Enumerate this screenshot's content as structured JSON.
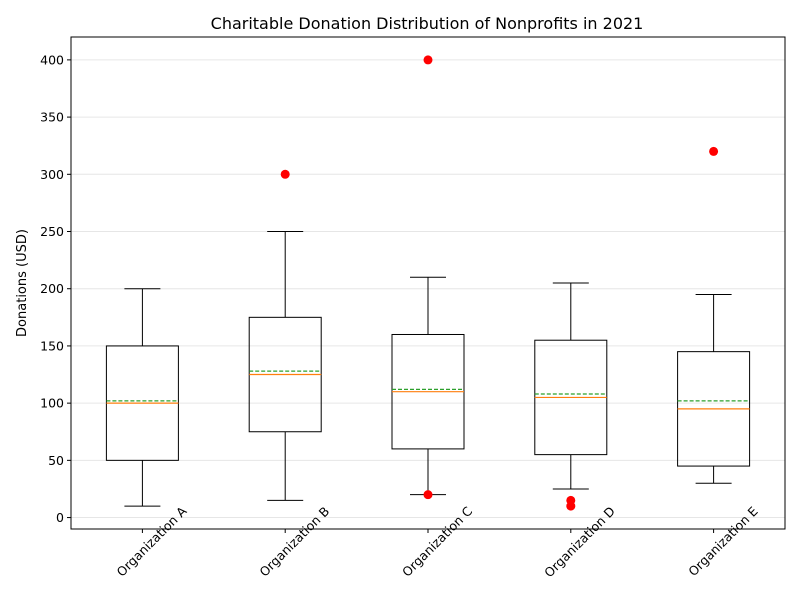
{
  "chart_data": {
    "type": "box",
    "title": "Charitable Donation Distribution of Nonprofits in 2021",
    "xlabel": "",
    "ylabel": "Donations (USD)",
    "ylim": [
      -10,
      420
    ],
    "yticks": [
      0,
      50,
      100,
      150,
      200,
      250,
      300,
      350,
      400
    ],
    "grid": "y",
    "categories": [
      "Organization A",
      "Organization B",
      "Organization C",
      "Organization D",
      "Organization E"
    ],
    "boxes": [
      {
        "category": "Organization A",
        "whisker_low": 10,
        "q1": 50,
        "median": 100,
        "mean": 102,
        "q3": 150,
        "whisker_high": 200,
        "outliers": []
      },
      {
        "category": "Organization B",
        "whisker_low": 15,
        "q1": 75,
        "median": 125,
        "mean": 128,
        "q3": 175,
        "whisker_high": 250,
        "outliers": [
          300
        ]
      },
      {
        "category": "Organization C",
        "whisker_low": 20,
        "q1": 60,
        "median": 110,
        "mean": 112,
        "q3": 160,
        "whisker_high": 210,
        "outliers": [
          20,
          400
        ]
      },
      {
        "category": "Organization D",
        "whisker_low": 25,
        "q1": 55,
        "median": 105,
        "mean": 108,
        "q3": 155,
        "whisker_high": 205,
        "outliers": [
          10,
          15
        ]
      },
      {
        "category": "Organization E",
        "whisker_low": 30,
        "q1": 45,
        "median": 95,
        "mean": 102,
        "q3": 145,
        "whisker_high": 195,
        "outliers": [
          320
        ]
      }
    ],
    "colors": {
      "box": "#000000",
      "median": "#ff7f0e",
      "mean": "#2ca02c",
      "outlier": "#ff0000",
      "grid": "#e6e6e6"
    }
  }
}
